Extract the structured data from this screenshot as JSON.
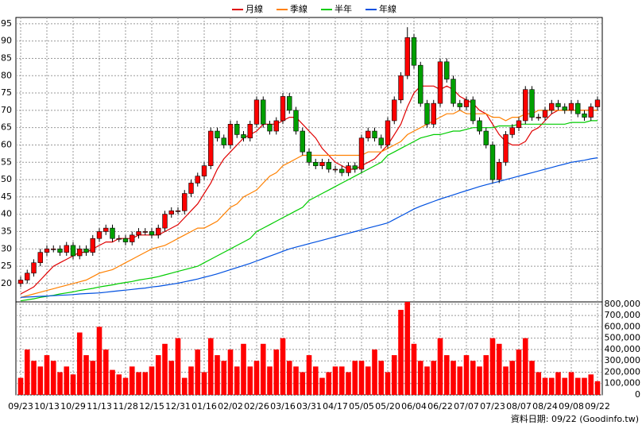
{
  "chart_data": {
    "type": "candlestick",
    "categories": [
      "09/23",
      null,
      null,
      null,
      "10/13",
      null,
      null,
      null,
      "10/29",
      null,
      null,
      null,
      "11/13",
      null,
      null,
      null,
      "11/28",
      null,
      null,
      null,
      "12/15",
      null,
      null,
      null,
      "12/31",
      null,
      null,
      null,
      "01/16",
      null,
      null,
      null,
      "02/02",
      null,
      null,
      null,
      "02/26",
      null,
      null,
      null,
      "03/16",
      null,
      null,
      null,
      "03/31",
      null,
      null,
      null,
      "04/17",
      null,
      null,
      null,
      "05/05",
      null,
      null,
      null,
      "05/20",
      null,
      null,
      null,
      "06/04",
      null,
      null,
      null,
      "06/22",
      null,
      null,
      null,
      "07/07",
      null,
      null,
      null,
      "07/23",
      null,
      null,
      null,
      "08/07",
      null,
      null,
      null,
      "08/24",
      null,
      null,
      null,
      "09/08",
      null,
      null,
      null,
      "09/22"
    ],
    "open": [
      20,
      21,
      23,
      26,
      29,
      30,
      30,
      29,
      31,
      28,
      30,
      29,
      33,
      35,
      36,
      33,
      33,
      32,
      34,
      35,
      35,
      34,
      36,
      40,
      41,
      41,
      46,
      49,
      51,
      54,
      64,
      62,
      60,
      66,
      63,
      62,
      66,
      73,
      66,
      64,
      67,
      74,
      70,
      64,
      58,
      55,
      54,
      55,
      53,
      53,
      52,
      54,
      53,
      62,
      64,
      62,
      60,
      67,
      73,
      80,
      91,
      83,
      72,
      66,
      72,
      84,
      79,
      72,
      71,
      73,
      67,
      64,
      60,
      50,
      55,
      63,
      65,
      67,
      76,
      68,
      68,
      70,
      72,
      71,
      70,
      72,
      69,
      68,
      71
    ],
    "high": [
      22,
      24,
      27,
      30,
      31,
      31,
      31,
      32,
      32,
      31,
      31,
      34,
      36,
      37,
      37,
      34,
      34,
      35,
      36,
      36,
      36,
      37,
      41,
      42,
      42,
      47,
      50,
      52,
      55,
      65,
      65,
      63,
      67,
      67,
      64,
      67,
      74,
      74,
      67,
      68,
      75,
      75,
      71,
      65,
      59,
      56,
      56,
      56,
      54,
      54,
      55,
      55,
      63,
      65,
      65,
      63,
      68,
      74,
      81,
      94,
      92,
      84,
      73,
      73,
      85,
      85,
      80,
      73,
      74,
      74,
      68,
      65,
      61,
      56,
      64,
      66,
      68,
      77,
      77,
      69,
      71,
      73,
      73,
      72,
      73,
      73,
      70,
      72,
      74
    ],
    "low": [
      19,
      20,
      22,
      25,
      28,
      29,
      28,
      28,
      27,
      27,
      28,
      28,
      32,
      34,
      32,
      32,
      31,
      31,
      33,
      34,
      33,
      33,
      35,
      39,
      40,
      40,
      45,
      48,
      50,
      53,
      61,
      59,
      59,
      62,
      61,
      61,
      65,
      65,
      63,
      63,
      66,
      69,
      63,
      57,
      54,
      53,
      53,
      52,
      52,
      51,
      51,
      52,
      52,
      61,
      61,
      59,
      59,
      66,
      72,
      79,
      82,
      71,
      65,
      65,
      71,
      78,
      71,
      70,
      70,
      66,
      63,
      59,
      49,
      49,
      54,
      62,
      64,
      66,
      67,
      67,
      67,
      69,
      70,
      69,
      69,
      68,
      67,
      67,
      70
    ],
    "close": [
      21,
      23,
      26,
      29,
      30,
      30,
      29,
      31,
      28,
      30,
      29,
      33,
      35,
      36,
      33,
      33,
      32,
      34,
      35,
      35,
      34,
      36,
      40,
      41,
      41,
      46,
      49,
      51,
      54,
      64,
      62,
      60,
      66,
      63,
      62,
      66,
      73,
      66,
      64,
      67,
      74,
      70,
      64,
      58,
      55,
      54,
      55,
      53,
      53,
      52,
      54,
      53,
      62,
      64,
      62,
      60,
      67,
      73,
      80,
      91,
      83,
      72,
      66,
      72,
      84,
      79,
      72,
      71,
      73,
      67,
      64,
      60,
      50,
      55,
      63,
      65,
      67,
      76,
      68,
      68,
      70,
      72,
      71,
      70,
      72,
      69,
      68,
      71,
      73
    ],
    "up_color": "#ff0000",
    "down_color": "#00a000",
    "series": [
      {
        "name": "月線",
        "color": "#e00000",
        "values": [
          17,
          18,
          19,
          21,
          23,
          25,
          26,
          27,
          28,
          29,
          29,
          30,
          31,
          32,
          32,
          33,
          33,
          33,
          34,
          34,
          34,
          34,
          35,
          36,
          37,
          39,
          41,
          43,
          46,
          49,
          53,
          56,
          58,
          60,
          62,
          63,
          64,
          66,
          66,
          66,
          67,
          68,
          68,
          66,
          64,
          62,
          59,
          57,
          55,
          54,
          53,
          53,
          54,
          55,
          56,
          58,
          60,
          63,
          66,
          71,
          75,
          77,
          77,
          77,
          76,
          77,
          76,
          74,
          73,
          72,
          70,
          69,
          66,
          63,
          61,
          60,
          60,
          61,
          64,
          65,
          67,
          69,
          70,
          70,
          70,
          70,
          70,
          70,
          70
        ]
      },
      {
        "name": "季線",
        "color": "#ff8000",
        "values": [
          16,
          16.5,
          17,
          17.5,
          18,
          18.5,
          19,
          19.5,
          20,
          20.5,
          21,
          22,
          23,
          23.5,
          24,
          25,
          26,
          27,
          28,
          29,
          30,
          30.5,
          31,
          32,
          33,
          34,
          35,
          36,
          36,
          37,
          38,
          40,
          42,
          43,
          45,
          46,
          47,
          49,
          51,
          52,
          54,
          55,
          56,
          57,
          57,
          57,
          57,
          57,
          57,
          57,
          57,
          57,
          57,
          58,
          58,
          58,
          59,
          60,
          61,
          63,
          64,
          65,
          66,
          67,
          68,
          69,
          69,
          70,
          69,
          69,
          69,
          69,
          68,
          68,
          67,
          68,
          68,
          69,
          69,
          70,
          70,
          70,
          70,
          70,
          70,
          70,
          70,
          70,
          70
        ]
      },
      {
        "name": "半年",
        "color": "#00cc00",
        "values": [
          15,
          15.3,
          15.6,
          16,
          16.3,
          16.6,
          17,
          17.3,
          17.6,
          18,
          18.3,
          18.6,
          19,
          19.3,
          19.6,
          20,
          20.3,
          20.6,
          21,
          21.3,
          21.6,
          22,
          22.5,
          23,
          23.5,
          24,
          24.5,
          25,
          26,
          27,
          28,
          29,
          30,
          31,
          32,
          33,
          35,
          36,
          37,
          38,
          39,
          40,
          41,
          42,
          44,
          45,
          46,
          47,
          48,
          49,
          50,
          51,
          52,
          53,
          54,
          55,
          57,
          58,
          59,
          60,
          61,
          62,
          62.5,
          63,
          63,
          63.5,
          64,
          64,
          64.5,
          65,
          65,
          65,
          65,
          65.5,
          65.5,
          65.5,
          66,
          66,
          66,
          66,
          66,
          66,
          66,
          66,
          66.5,
          66.5,
          66.5,
          67,
          67
        ]
      },
      {
        "name": "年線",
        "color": "#0050e0",
        "values": [
          16,
          16.1,
          16.2,
          16.3,
          16.4,
          16.5,
          16.6,
          16.7,
          16.8,
          17,
          17.1,
          17.2,
          17.3,
          17.5,
          17.7,
          17.9,
          18.1,
          18.3,
          18.5,
          18.7,
          19,
          19.2,
          19.5,
          19.8,
          20.1,
          20.5,
          20.9,
          21.3,
          21.8,
          22.3,
          22.8,
          23.4,
          24,
          24.6,
          25.2,
          25.8,
          26.5,
          27.2,
          27.9,
          28.6,
          29.3,
          30,
          30.5,
          31,
          31.5,
          32,
          32.5,
          33,
          33.5,
          34,
          34.5,
          35,
          35.5,
          36,
          36.5,
          37,
          37.5,
          38.5,
          39.5,
          40.5,
          41.5,
          42.3,
          43,
          43.7,
          44.4,
          45,
          45.6,
          46.2,
          46.8,
          47.4,
          48,
          48.5,
          49,
          49.5,
          50,
          50.5,
          51,
          51.5,
          52,
          52.5,
          53,
          53.5,
          54,
          54.5,
          55,
          55.3,
          55.6,
          56,
          56.3
        ]
      }
    ],
    "ylim": [
      14.7,
      96.8
    ],
    "yticks": [
      20,
      25,
      30,
      35,
      40,
      45,
      50,
      55,
      60,
      65,
      70,
      75,
      80,
      85,
      90,
      95
    ],
    "grid": true,
    "volume": {
      "color": "#ff0000",
      "values": [
        150000,
        400000,
        300000,
        250000,
        350000,
        300000,
        200000,
        250000,
        180000,
        550000,
        350000,
        300000,
        600000,
        400000,
        220000,
        180000,
        150000,
        250000,
        200000,
        200000,
        250000,
        350000,
        450000,
        300000,
        500000,
        150000,
        250000,
        400000,
        200000,
        500000,
        350000,
        300000,
        400000,
        250000,
        450000,
        250000,
        300000,
        450000,
        250000,
        400000,
        500000,
        300000,
        250000,
        200000,
        350000,
        250000,
        150000,
        200000,
        250000,
        250000,
        200000,
        300000,
        300000,
        250000,
        400000,
        300000,
        200000,
        350000,
        750000,
        820000,
        450000,
        300000,
        250000,
        300000,
        500000,
        350000,
        300000,
        250000,
        350000,
        300000,
        250000,
        350000,
        500000,
        450000,
        250000,
        300000,
        400000,
        500000,
        300000,
        200000,
        150000,
        150000,
        200000,
        150000,
        200000,
        150000,
        150000,
        180000,
        120000
      ],
      "ylim": [
        0,
        820000
      ],
      "yticks": [
        0,
        {
          "value": 100000,
          "label": "100,000"
        },
        {
          "value": 200000,
          "label": "200,000"
        },
        {
          "value": 300000,
          "label": "300,000"
        },
        {
          "value": 400000,
          "label": "400,000"
        },
        {
          "value": 500000,
          "label": "500,000"
        },
        {
          "value": 600000,
          "label": "600,000"
        },
        {
          "value": 700000,
          "label": "700,000"
        },
        {
          "value": 800000,
          "label": "800,000"
        }
      ]
    },
    "footer": "資料日期: 09/22 (Goodinfo.tw)"
  }
}
